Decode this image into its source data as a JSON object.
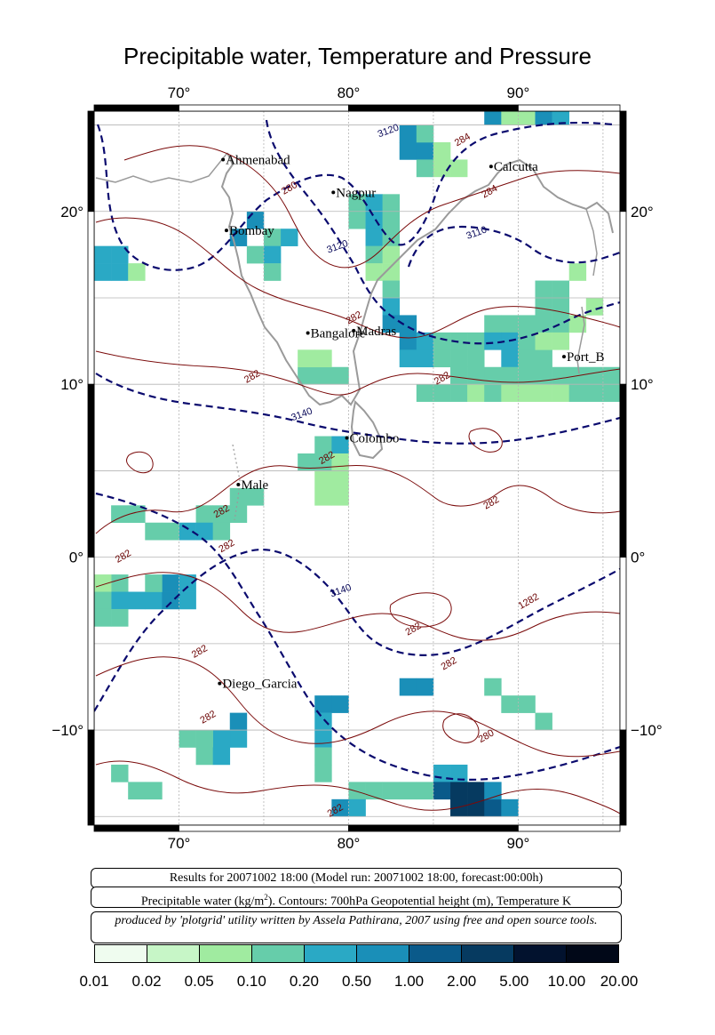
{
  "title": "Precipitable water, Temperature and Pressure",
  "axes": {
    "lon_ticks": [
      "70°",
      "80°",
      "90°"
    ],
    "lat_ticks": [
      "20°",
      "10°",
      "0°",
      "−10°"
    ],
    "lon_range": [
      65,
      96
    ],
    "lat_range": [
      -15.5,
      25.8
    ]
  },
  "cities": [
    {
      "name": "Ahmenabad",
      "lon": 72.6,
      "lat": 23.0
    },
    {
      "name": "Nagpur",
      "lon": 79.1,
      "lat": 21.1
    },
    {
      "name": "Calcutta",
      "lon": 88.4,
      "lat": 22.6
    },
    {
      "name": "Bombay",
      "lon": 72.8,
      "lat": 18.9
    },
    {
      "name": "Bangalore",
      "lon": 77.6,
      "lat": 12.97
    },
    {
      "name": "Madras",
      "lon": 80.3,
      "lat": 13.1
    },
    {
      "name": "Port_B",
      "lon": 92.7,
      "lat": 11.6
    },
    {
      "name": "Colombo",
      "lon": 79.9,
      "lat": 6.9
    },
    {
      "name": "Male",
      "lon": 73.5,
      "lat": 4.2
    },
    {
      "name": "Diego_Garcia",
      "lon": 72.4,
      "lat": -7.3
    }
  ],
  "contour_labels": {
    "height": [
      {
        "text": "3120",
        "lon": 82.4,
        "lat": 24.5
      },
      {
        "text": "3120",
        "lon": 79.4,
        "lat": 17.8
      },
      {
        "text": "3110",
        "lon": 87.6,
        "lat": 18.6
      },
      {
        "text": "3140",
        "lon": 77.3,
        "lat": 8.1
      },
      {
        "text": "3140",
        "lon": 79.6,
        "lat": -2.1
      }
    ],
    "temperature": [
      {
        "text": "280",
        "lon": 76.6,
        "lat": 21.2
      },
      {
        "text": "284",
        "lon": 86.8,
        "lat": 24.0
      },
      {
        "text": "284",
        "lon": 88.4,
        "lat": 21.0
      },
      {
        "text": "282",
        "lon": 80.4,
        "lat": 13.7
      },
      {
        "text": "282",
        "lon": 74.4,
        "lat": 10.3
      },
      {
        "text": "282",
        "lon": 85.6,
        "lat": 10.2
      },
      {
        "text": "282",
        "lon": 78.8,
        "lat": 5.6
      },
      {
        "text": "282",
        "lon": 72.6,
        "lat": 2.5
      },
      {
        "text": "282",
        "lon": 72.9,
        "lat": 0.5
      },
      {
        "text": "282",
        "lon": 66.8,
        "lat": -0.1
      },
      {
        "text": "282",
        "lon": 88.5,
        "lat": 3.0
      },
      {
        "text": "1282",
        "lon": 90.7,
        "lat": -2.7
      },
      {
        "text": "282",
        "lon": 83.9,
        "lat": -4.3
      },
      {
        "text": "282",
        "lon": 86.0,
        "lat": -6.3
      },
      {
        "text": "282",
        "lon": 71.3,
        "lat": -5.6
      },
      {
        "text": "282",
        "lon": 71.8,
        "lat": -9.4
      },
      {
        "text": "280",
        "lon": 88.2,
        "lat": -10.5
      },
      {
        "text": "282",
        "lon": 79.3,
        "lat": -14.8
      }
    ]
  },
  "info": {
    "line1": "Results for 20071002 18:00 (Model run: 20071002 18:00, forecast:00:00h)",
    "line2_pre": "Precipitable water (kg/m",
    "line2_sup": "2",
    "line2_post": ").  Contours: 700hPa Geopotential height (m), Temperature K",
    "line3": "produced by 'plotgrid' utility written by Assela Pathirana, 2007 using free and open source tools."
  },
  "colorbar": {
    "colors": [
      "#effcef",
      "#c7f6c7",
      "#a0eba0",
      "#66cdaa",
      "#2aa9c5",
      "#1a8fb8",
      "#0a5a8a",
      "#063a60",
      "#02122e",
      "#010818",
      "#000000"
    ],
    "labels": [
      "0.01",
      "0.02",
      "0.05",
      "0.10",
      "0.20",
      "0.50",
      "1.00",
      "2.00",
      "5.00",
      "10.00",
      "20.00"
    ]
  },
  "chart_data": {
    "type": "heatmap",
    "title": "Precipitable water, Temperature and Pressure",
    "units": "kg/m2",
    "grid_step_deg": 1,
    "cells": [
      [
        83,
        23,
        5
      ],
      [
        84,
        23,
        5
      ],
      [
        83,
        24,
        5
      ],
      [
        84,
        24,
        3
      ],
      [
        85,
        23,
        2
      ],
      [
        84,
        22,
        3
      ],
      [
        85,
        22,
        2
      ],
      [
        86,
        22,
        2
      ],
      [
        80,
        20,
        3
      ],
      [
        81,
        20,
        4
      ],
      [
        82,
        20,
        3
      ],
      [
        80,
        19,
        3
      ],
      [
        81,
        19,
        4
      ],
      [
        82,
        19,
        3
      ],
      [
        81,
        18,
        4
      ],
      [
        82,
        18,
        3
      ],
      [
        81,
        17,
        3
      ],
      [
        82,
        17,
        2
      ],
      [
        82,
        16,
        2
      ],
      [
        81,
        16,
        2
      ],
      [
        75,
        18,
        3
      ],
      [
        76,
        18,
        4
      ],
      [
        74,
        17,
        3
      ],
      [
        75,
        17,
        4
      ],
      [
        74,
        19,
        5
      ],
      [
        75,
        16,
        3
      ],
      [
        73,
        18,
        5
      ],
      [
        82,
        15,
        3
      ],
      [
        82,
        14,
        4
      ],
      [
        82,
        13,
        5
      ],
      [
        83,
        13,
        5
      ],
      [
        83,
        12,
        5
      ],
      [
        84,
        12,
        4
      ],
      [
        83,
        11,
        4
      ],
      [
        84,
        11,
        4
      ],
      [
        85,
        12,
        3
      ],
      [
        85,
        11,
        3
      ],
      [
        86,
        12,
        3
      ],
      [
        86,
        11,
        3
      ],
      [
        87,
        11,
        3
      ],
      [
        87,
        12,
        3
      ],
      [
        88,
        13,
        3
      ],
      [
        89,
        13,
        3
      ],
      [
        90,
        13,
        3
      ],
      [
        91,
        14,
        3
      ],
      [
        92,
        14,
        3
      ],
      [
        91,
        15,
        3
      ],
      [
        92,
        15,
        3
      ],
      [
        91,
        13,
        3
      ],
      [
        92,
        13,
        3
      ],
      [
        93,
        13,
        2
      ],
      [
        93,
        16,
        2
      ],
      [
        94,
        14,
        2
      ],
      [
        88,
        12,
        4
      ],
      [
        89,
        12,
        4
      ],
      [
        90,
        12,
        3
      ],
      [
        89,
        11,
        4
      ],
      [
        90,
        11,
        3
      ],
      [
        91,
        11,
        3
      ],
      [
        91,
        12,
        2
      ],
      [
        92,
        12,
        2
      ],
      [
        86,
        10,
        3
      ],
      [
        87,
        10,
        3
      ],
      [
        88,
        10,
        3
      ],
      [
        89,
        10,
        3
      ],
      [
        90,
        10,
        3
      ],
      [
        91,
        10,
        3
      ],
      [
        92,
        10,
        3
      ],
      [
        93,
        10,
        3
      ],
      [
        94,
        10,
        3
      ],
      [
        95,
        10,
        3
      ],
      [
        84,
        9,
        3
      ],
      [
        85,
        9,
        3
      ],
      [
        86,
        9,
        3
      ],
      [
        87,
        9,
        2
      ],
      [
        88,
        9,
        3
      ],
      [
        89,
        9,
        2
      ],
      [
        90,
        9,
        2
      ],
      [
        91,
        9,
        2
      ],
      [
        92,
        9,
        2
      ],
      [
        93,
        9,
        3
      ],
      [
        94,
        9,
        3
      ],
      [
        95,
        9,
        3
      ],
      [
        88,
        25,
        5
      ],
      [
        89,
        25,
        2
      ],
      [
        90,
        25,
        2
      ],
      [
        91,
        25,
        5
      ],
      [
        92,
        25,
        4
      ],
      [
        77,
        10,
        3
      ],
      [
        78,
        10,
        3
      ],
      [
        79,
        10,
        3
      ],
      [
        77,
        11,
        2
      ],
      [
        78,
        11,
        2
      ],
      [
        65,
        17,
        4
      ],
      [
        66,
        17,
        4
      ],
      [
        65,
        16,
        4
      ],
      [
        66,
        16,
        4
      ],
      [
        67,
        16,
        2
      ],
      [
        78,
        6,
        3
      ],
      [
        79,
        6,
        4
      ],
      [
        77,
        5,
        3
      ],
      [
        78,
        5,
        3
      ],
      [
        79,
        5,
        2
      ],
      [
        78,
        4,
        2
      ],
      [
        79,
        4,
        2
      ],
      [
        78,
        3,
        2
      ],
      [
        79,
        3,
        2
      ],
      [
        73,
        3,
        3
      ],
      [
        74,
        3,
        3
      ],
      [
        72,
        2,
        3
      ],
      [
        73,
        2,
        3
      ],
      [
        71,
        2,
        3
      ],
      [
        70,
        1,
        4
      ],
      [
        71,
        1,
        4
      ],
      [
        72,
        1,
        3
      ],
      [
        69,
        1,
        3
      ],
      [
        68,
        1,
        3
      ],
      [
        67,
        2,
        3
      ],
      [
        66,
        2,
        3
      ],
      [
        66,
        -2,
        3
      ],
      [
        66,
        -3,
        4
      ],
      [
        67,
        -3,
        4
      ],
      [
        68,
        -3,
        4
      ],
      [
        69,
        -2,
        5
      ],
      [
        70,
        -2,
        4
      ],
      [
        70,
        -3,
        4
      ],
      [
        69,
        -3,
        5
      ],
      [
        68,
        -2,
        3
      ],
      [
        65,
        -2,
        2
      ],
      [
        65,
        -3,
        3
      ],
      [
        65,
        -4,
        3
      ],
      [
        66,
        -4,
        3
      ],
      [
        83,
        -8,
        5
      ],
      [
        84,
        -8,
        5
      ],
      [
        78,
        -9,
        5
      ],
      [
        79,
        -9,
        5
      ],
      [
        78,
        -10,
        4
      ],
      [
        78,
        -11,
        4
      ],
      [
        78,
        -12,
        3
      ],
      [
        78,
        -13,
        3
      ],
      [
        73,
        -10,
        5
      ],
      [
        73,
        -11,
        4
      ],
      [
        72,
        -11,
        4
      ],
      [
        71,
        -11,
        3
      ],
      [
        71,
        -12,
        3
      ],
      [
        72,
        -12,
        4
      ],
      [
        70,
        -11,
        3
      ],
      [
        85,
        -13,
        4
      ],
      [
        86,
        -13,
        4
      ],
      [
        84,
        -14,
        3
      ],
      [
        85,
        -14,
        6
      ],
      [
        86,
        -14,
        7
      ],
      [
        87,
        -14,
        7
      ],
      [
        86,
        -15,
        7
      ],
      [
        87,
        -15,
        7
      ],
      [
        88,
        -15,
        6
      ],
      [
        89,
        -15,
        5
      ],
      [
        88,
        -14,
        5
      ],
      [
        82,
        -14,
        3
      ],
      [
        83,
        -14,
        3
      ],
      [
        81,
        -14,
        3
      ],
      [
        80,
        -14,
        3
      ],
      [
        79,
        -15,
        5
      ],
      [
        80,
        -15,
        4
      ],
      [
        88,
        -8,
        3
      ],
      [
        89,
        -9,
        3
      ],
      [
        90,
        -9,
        3
      ],
      [
        91,
        -10,
        3
      ],
      [
        66,
        -13,
        3
      ],
      [
        67,
        -14,
        3
      ],
      [
        68,
        -14,
        3
      ]
    ]
  }
}
